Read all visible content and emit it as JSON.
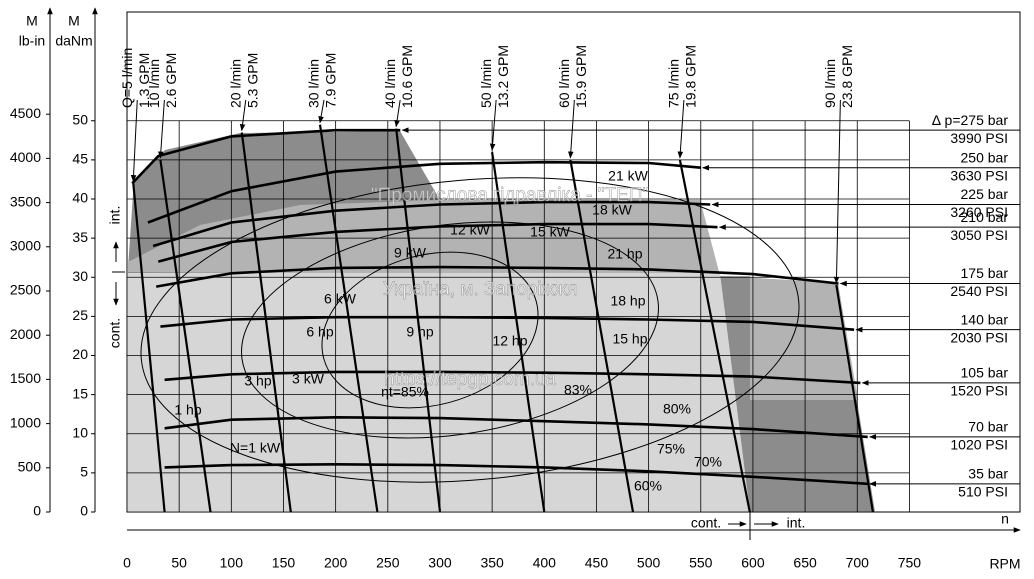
{
  "chart_data": {
    "type": "line",
    "x_label": "RPM",
    "x_arrow_label": "n",
    "y_symbol": "M",
    "y_label": "daNm",
    "y2_label": "lb-in",
    "xlim": [
      0,
      856
    ],
    "xticks": [
      0,
      50,
      100,
      150,
      200,
      250,
      300,
      350,
      400,
      450,
      500,
      550,
      600,
      650,
      700,
      750
    ],
    "ylim": [
      0,
      63.9
    ],
    "yticks": [
      0,
      5,
      10,
      15,
      20,
      25,
      30,
      35,
      40,
      45,
      50
    ],
    "y2lim": [
      0,
      5656
    ],
    "y2ticks": [
      0,
      500,
      1000,
      1500,
      2000,
      2500,
      3000,
      3500,
      4000,
      4500
    ],
    "grid": true,
    "series": [
      {
        "name": "∆ p=275 bar",
        "psi": "3990 PSI",
        "color": "#000000",
        "x": [
          5,
          30,
          100,
          200,
          262
        ],
        "values": [
          42,
          45.5,
          48,
          48.8,
          48.8
        ]
      },
      {
        "name": "250 bar",
        "psi": "3630 PSI",
        "color": "#000000",
        "x": [
          20,
          100,
          200,
          300,
          400,
          500,
          550
        ],
        "values": [
          37,
          41,
          43.5,
          44.5,
          44.7,
          44.6,
          44
        ]
      },
      {
        "name": "225 bar",
        "psi": "3260 PSI",
        "color": "#000000",
        "x": [
          25,
          100,
          200,
          300,
          400,
          500,
          559
        ],
        "values": [
          34,
          37,
          38.5,
          39.3,
          39.6,
          39.6,
          39.3
        ]
      },
      {
        "name": "210 bar",
        "psi": "3050 PSI",
        "color": "#000000",
        "x": [
          30,
          100,
          200,
          300,
          400,
          500,
          566
        ],
        "values": [
          32,
          34.5,
          35.8,
          36.5,
          36.8,
          36.8,
          36.4
        ]
      },
      {
        "name": "175 bar",
        "psi": "2540 PSI",
        "color": "#000000",
        "x": [
          28,
          100,
          200,
          300,
          400,
          500,
          600,
          682
        ],
        "values": [
          28.8,
          30.5,
          31.2,
          31.3,
          31.2,
          31,
          30.4,
          29.2
        ]
      },
      {
        "name": "140 bar",
        "psi": "2030 PSI",
        "color": "#000000",
        "x": [
          32,
          100,
          200,
          300,
          400,
          500,
          600,
          697
        ],
        "values": [
          23.7,
          24.6,
          24.9,
          24.9,
          24.8,
          24.6,
          24.3,
          23.3
        ]
      },
      {
        "name": "105 bar",
        "psi": "1520 PSI",
        "color": "#000000",
        "x": [
          36,
          100,
          200,
          300,
          400,
          500,
          600,
          703
        ],
        "values": [
          16.9,
          17.6,
          17.9,
          17.9,
          17.8,
          17.6,
          17.3,
          16.5
        ]
      },
      {
        "name": "70 bar",
        "psi": "1020 PSI",
        "color": "#000000",
        "x": [
          36,
          100,
          200,
          300,
          400,
          500,
          600,
          710
        ],
        "values": [
          10.7,
          11.8,
          12.1,
          12,
          11.6,
          11.2,
          10.6,
          9.6
        ]
      },
      {
        "name": "35 bar",
        "psi": "510 PSI",
        "color": "#000000",
        "x": [
          36,
          100,
          200,
          300,
          400,
          500,
          600,
          710
        ],
        "values": [
          5.7,
          6,
          6.1,
          6,
          5.7,
          5.2,
          4.5,
          3.6
        ]
      }
    ],
    "flows": [
      {
        "name": "Q=5 l/min",
        "gpm": "1.3 GPM",
        "x": [
          6,
          36
        ],
        "values": [
          42,
          0
        ]
      },
      {
        "name": "10 l/min",
        "gpm": "2.6 GPM",
        "x": [
          32,
          80
        ],
        "values": [
          45,
          0
        ]
      },
      {
        "name": "20 l/min",
        "gpm": "5.3 GPM",
        "x": [
          110,
          157
        ],
        "values": [
          48.5,
          0
        ]
      },
      {
        "name": "30 l/min",
        "gpm": "7.9 GPM",
        "x": [
          185,
          240
        ],
        "values": [
          49.5,
          0
        ]
      },
      {
        "name": "40 l/min",
        "gpm": "10.6 GPM",
        "x": [
          258,
          300
        ],
        "values": [
          49,
          0
        ]
      },
      {
        "name": "50 l/min",
        "gpm": "13.2 GPM",
        "x": [
          350,
          400
        ],
        "values": [
          46,
          0
        ]
      },
      {
        "name": "60 l/min",
        "gpm": "15.9 GPM",
        "x": [
          425,
          485
        ],
        "values": [
          45,
          0
        ]
      },
      {
        "name": "75 l/min",
        "gpm": "19.8 GPM",
        "x": [
          530,
          597
        ],
        "values": [
          45,
          0
        ]
      },
      {
        "name": "90 l/min",
        "gpm": "23.8 GPM",
        "x": [
          680,
          715
        ],
        "values": [
          29,
          0
        ]
      }
    ],
    "power_labels": [
      "N=1 kW",
      "1 hp",
      "3 hp",
      "3 kW",
      "6 hp",
      "6 kW",
      "9 hp",
      "9 kW",
      "12 hp",
      "12 kW",
      "15 hp",
      "15 kW",
      "18 hp",
      "18 kW",
      "21 hp",
      "21 kW"
    ],
    "efficiency_labels": [
      "ηt=85%",
      "83%",
      "80%",
      "75%",
      "70%",
      "60%"
    ],
    "zone_cont": "cont.",
    "zone_int": "int.",
    "watermark": [
      "\"Промислова гідравліка - \"ТЕП\"",
      "Україна, м. Запоріжжя",
      "https://tepgp.com.ua"
    ]
  }
}
